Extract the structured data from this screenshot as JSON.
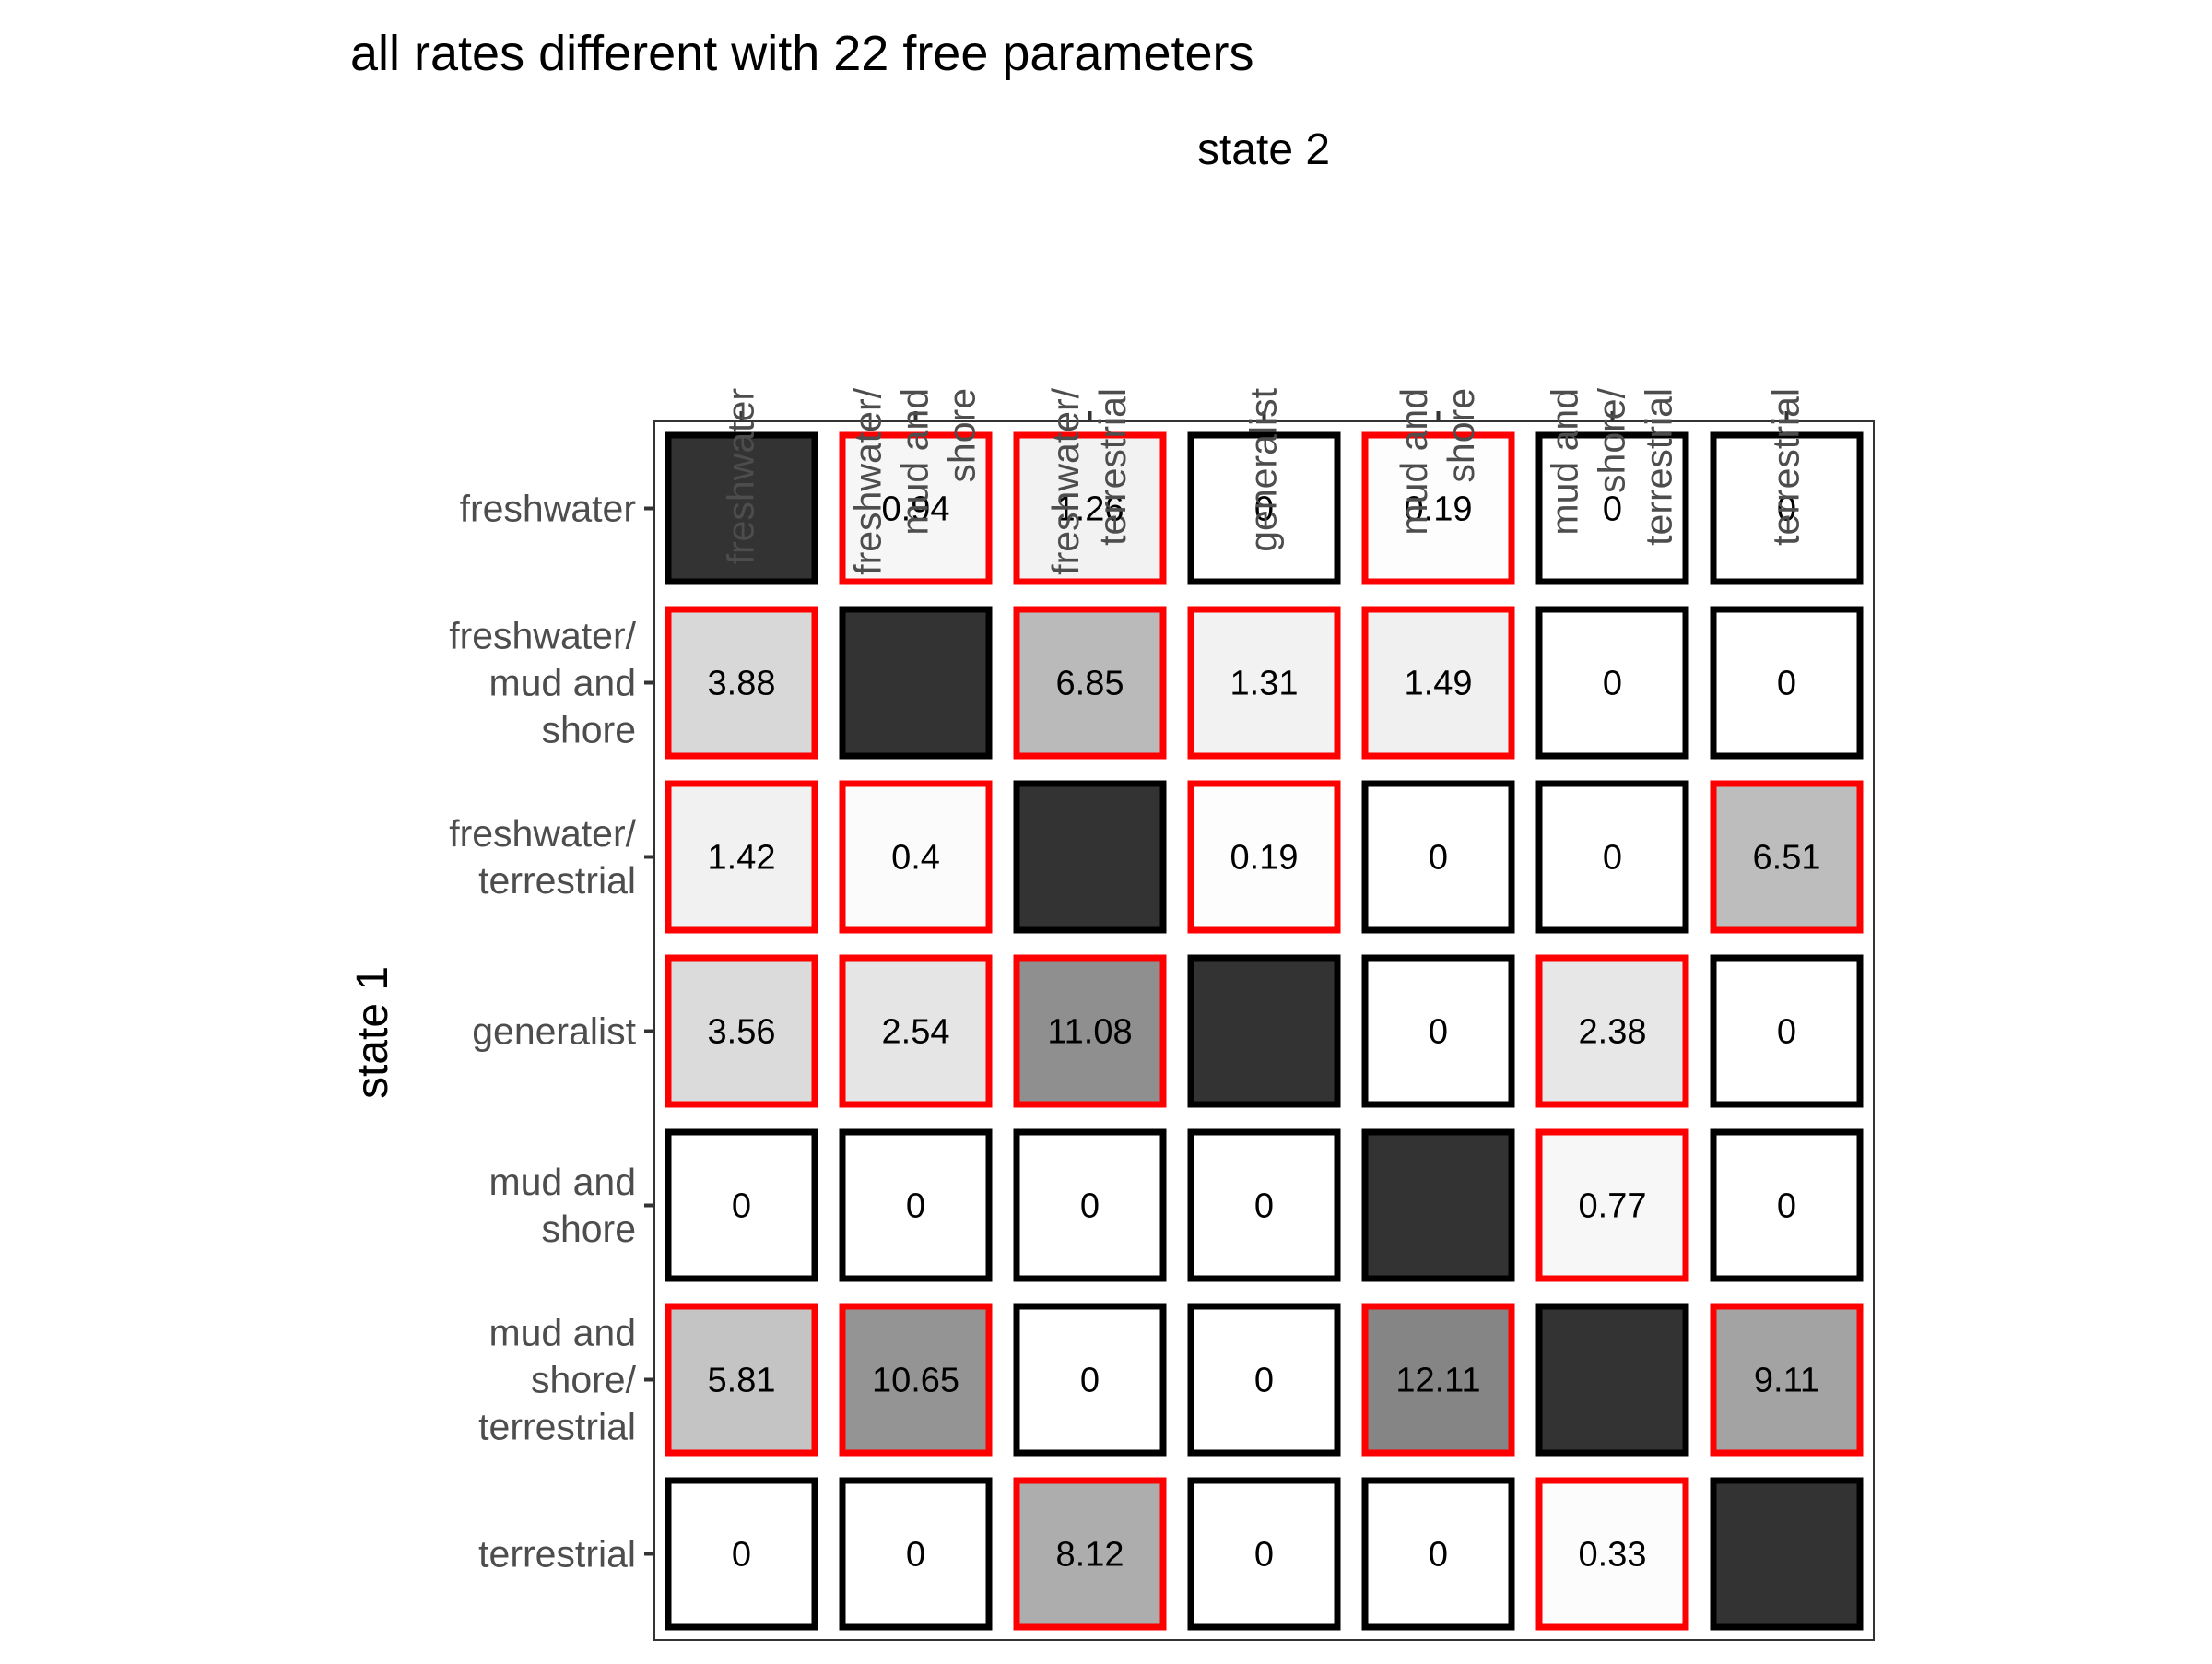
{
  "chart_data": {
    "type": "heatmap",
    "title": "all rates different with 22 free parameters",
    "xlabel": "state 2",
    "ylabel": "state 1",
    "x_position": "top",
    "grid": false,
    "legend": "none",
    "categories": [
      [
        "freshwater"
      ],
      [
        "freshwater/",
        "mud and",
        "shore"
      ],
      [
        "freshwater/",
        "terrestrial"
      ],
      [
        "generalist"
      ],
      [
        "mud and",
        "shore"
      ],
      [
        "mud and",
        "shore/",
        "terrestrial"
      ],
      [
        "terrestrial"
      ]
    ],
    "cells": [
      [
        {
          "label": "",
          "free": false,
          "diagonal": true
        },
        {
          "label": "0.94",
          "value": 0.94,
          "free": true
        },
        {
          "label": "1.26",
          "value": 1.26,
          "free": true
        },
        {
          "label": "0",
          "value": 0,
          "free": false
        },
        {
          "label": "0.19",
          "value": 0.19,
          "free": true
        },
        {
          "label": "0",
          "value": 0,
          "free": false
        },
        {
          "label": "0",
          "value": 0,
          "free": false
        }
      ],
      [
        {
          "label": "3.88",
          "value": 3.88,
          "free": true
        },
        {
          "label": "",
          "free": false,
          "diagonal": true
        },
        {
          "label": "6.85",
          "value": 6.85,
          "free": true
        },
        {
          "label": "1.31",
          "value": 1.31,
          "free": true
        },
        {
          "label": "1.49",
          "value": 1.49,
          "free": true
        },
        {
          "label": "0",
          "value": 0,
          "free": false
        },
        {
          "label": "0",
          "value": 0,
          "free": false
        }
      ],
      [
        {
          "label": "1.42",
          "value": 1.42,
          "free": true
        },
        {
          "label": "0.4",
          "value": 0.4,
          "free": true
        },
        {
          "label": "",
          "free": false,
          "diagonal": true
        },
        {
          "label": "0.19",
          "value": 0.19,
          "free": true
        },
        {
          "label": "0",
          "value": 0,
          "free": false
        },
        {
          "label": "0",
          "value": 0,
          "free": false
        },
        {
          "label": "6.51",
          "value": 6.51,
          "free": true
        }
      ],
      [
        {
          "label": "3.56",
          "value": 3.56,
          "free": true
        },
        {
          "label": "2.54",
          "value": 2.54,
          "free": true
        },
        {
          "label": "11.08",
          "value": 11.08,
          "free": true
        },
        {
          "label": "",
          "free": false,
          "diagonal": true
        },
        {
          "label": "0",
          "value": 0,
          "free": false
        },
        {
          "label": "2.38",
          "value": 2.38,
          "free": true
        },
        {
          "label": "0",
          "value": 0,
          "free": false
        }
      ],
      [
        {
          "label": "0",
          "value": 0,
          "free": false
        },
        {
          "label": "0",
          "value": 0,
          "free": false
        },
        {
          "label": "0",
          "value": 0,
          "free": false
        },
        {
          "label": "0",
          "value": 0,
          "free": false
        },
        {
          "label": "",
          "free": false,
          "diagonal": true
        },
        {
          "label": "0.77",
          "value": 0.77,
          "free": true
        },
        {
          "label": "0",
          "value": 0,
          "free": false
        }
      ],
      [
        {
          "label": "5.81",
          "value": 5.81,
          "free": true
        },
        {
          "label": "10.65",
          "value": 10.65,
          "free": true
        },
        {
          "label": "0",
          "value": 0,
          "free": false
        },
        {
          "label": "0",
          "value": 0,
          "free": false
        },
        {
          "label": "12.11",
          "value": 12.11,
          "free": true
        },
        {
          "label": "",
          "free": false,
          "diagonal": true
        },
        {
          "label": "9.11",
          "value": 9.11,
          "free": true
        }
      ],
      [
        {
          "label": "0",
          "value": 0,
          "free": false
        },
        {
          "label": "0",
          "value": 0,
          "free": false
        },
        {
          "label": "8.12",
          "value": 8.12,
          "free": true
        },
        {
          "label": "0",
          "value": 0,
          "free": false
        },
        {
          "label": "0",
          "value": 0,
          "free": false
        },
        {
          "label": "0.33",
          "value": 0.33,
          "free": true
        },
        {
          "label": "",
          "free": false,
          "diagonal": true
        }
      ]
    ],
    "colors": {
      "free_border": "#ff0000",
      "fixed_border": "#000000",
      "diagonal_fill": "#333333",
      "low_fill": "#ffffff",
      "high_fill": "#858585",
      "panel_border": "#333333",
      "tick": "#333333"
    }
  }
}
